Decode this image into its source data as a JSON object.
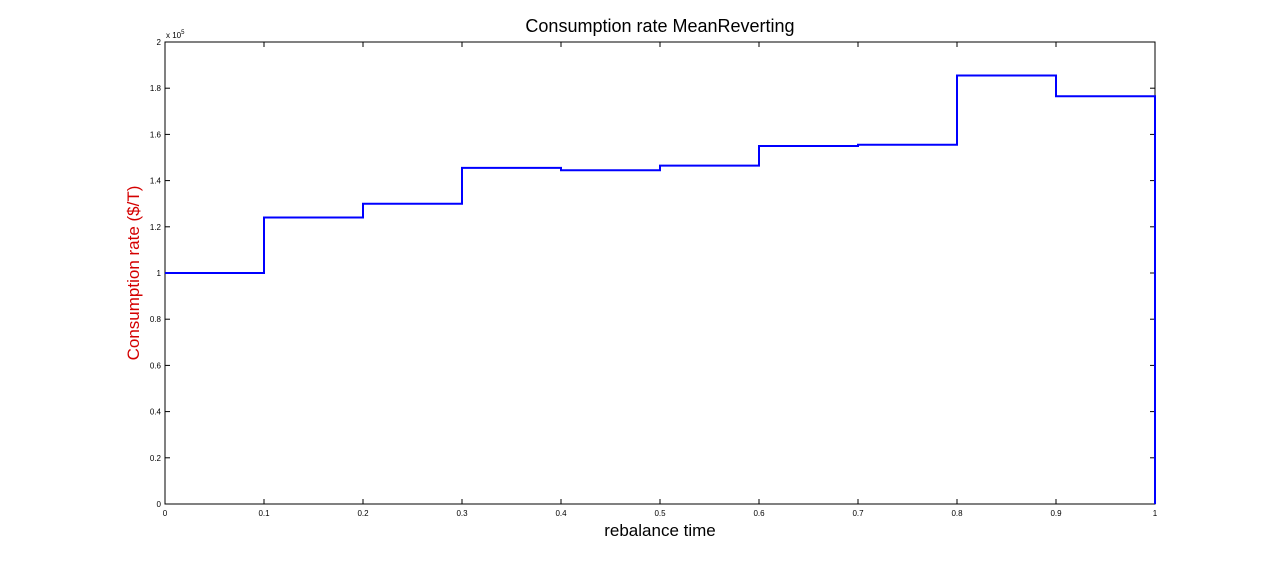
{
  "chart_data": {
    "type": "line",
    "step": "post",
    "title": "Consumption rate MeanReverting",
    "xlabel": "rebalance time",
    "ylabel": "Consumption rate ($/T)",
    "y_multiplier_label": "x 10",
    "y_multiplier_exponent": "5",
    "xlim": [
      0,
      1
    ],
    "ylim": [
      0,
      2
    ],
    "x_ticks": [
      "0",
      "0.1",
      "0.2",
      "0.3",
      "0.4",
      "0.5",
      "0.6",
      "0.7",
      "0.8",
      "0.9",
      "1"
    ],
    "y_ticks": [
      "0",
      "0.2",
      "0.4",
      "0.6",
      "0.8",
      "1",
      "1.2",
      "1.4",
      "1.6",
      "1.8",
      "2"
    ],
    "grid": false,
    "series": [
      {
        "color": "#0000ff",
        "x": [
          0,
          0.1,
          0.2,
          0.3,
          0.4,
          0.5,
          0.6,
          0.7,
          0.8,
          0.9,
          1.0,
          1.0
        ],
        "y": [
          1.0,
          1.24,
          1.3,
          1.455,
          1.445,
          1.465,
          1.55,
          1.555,
          1.855,
          1.765,
          1.765,
          0
        ]
      }
    ],
    "colors": {
      "line": "#0000ff",
      "ylabel": "#d40000",
      "axes": "#000000"
    }
  }
}
